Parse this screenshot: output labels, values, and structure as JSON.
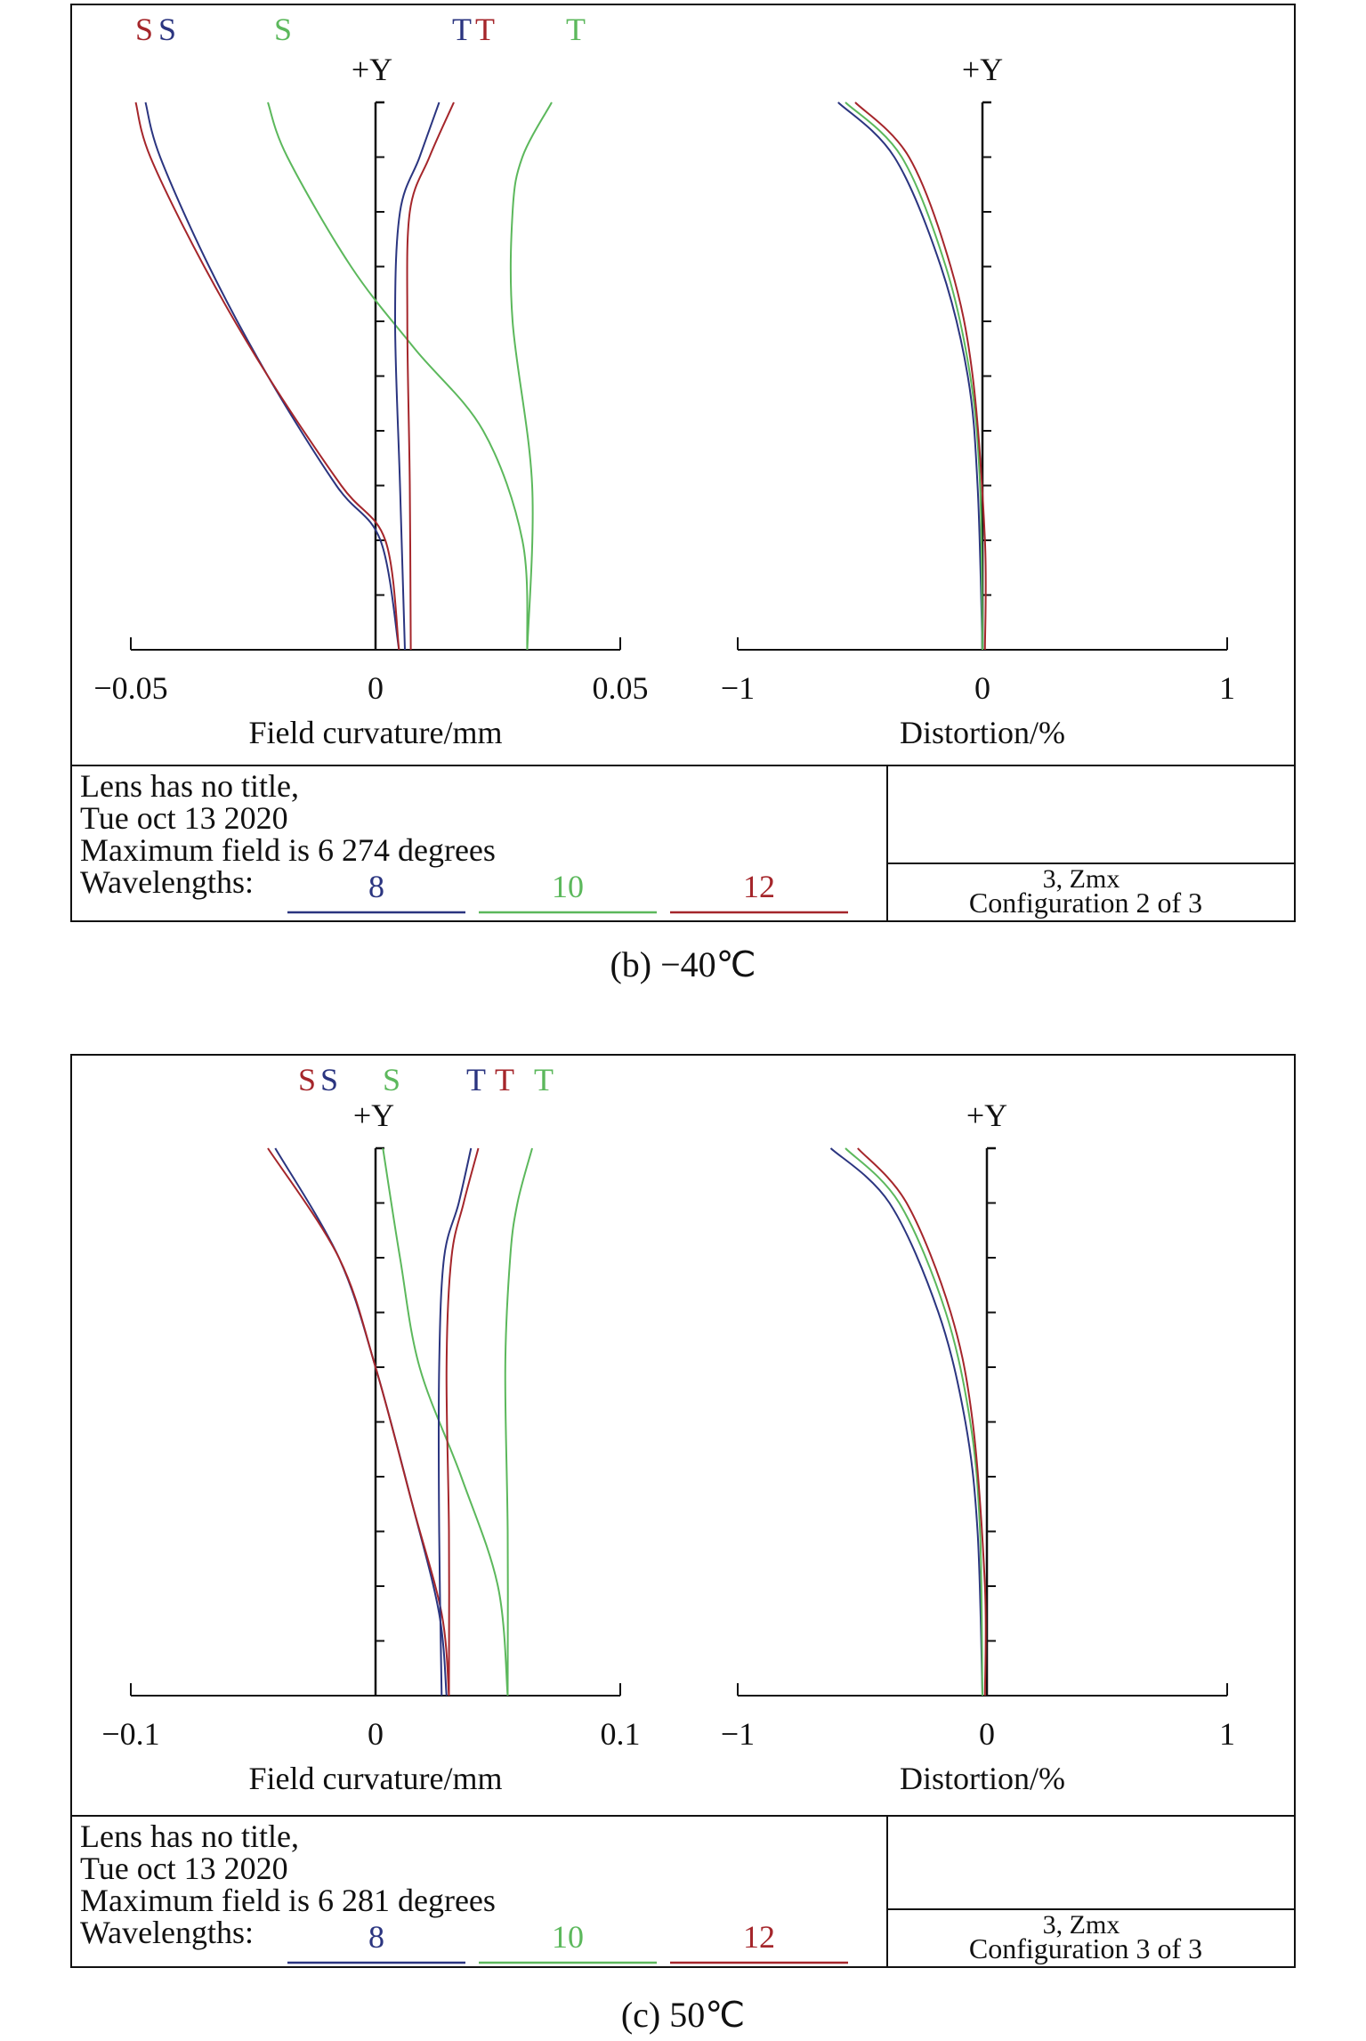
{
  "colors": {
    "blue": "#2b3580",
    "green": "#5cb85c",
    "red": "#a5262b",
    "frame": "#111111"
  },
  "panels": [
    {
      "caption": "(b) −40℃",
      "field_label": "Field curvature/mm",
      "distortion_label": "Distortion/%",
      "plus_y": "+Y",
      "field_ticks": [
        "−0.05",
        "0",
        "0.05"
      ],
      "dist_ticks": [
        "−1",
        "0",
        "1"
      ],
      "legend_top": [
        {
          "text": "S",
          "color": "red"
        },
        {
          "text": "S",
          "color": "blue"
        },
        {
          "text": "S",
          "color": "green"
        },
        {
          "text": "T",
          "color": "blue"
        },
        {
          "text": "T",
          "color": "red"
        },
        {
          "text": "T",
          "color": "green"
        }
      ],
      "info_lines": [
        "Lens has no title,",
        "Tue oct 13 2020",
        "Maximum field is 6 274 degrees"
      ],
      "wavelengths_label": "Wavelengths:",
      "wavelengths": [
        "8",
        "10",
        "12"
      ],
      "config_lines": [
        "3, Zmx",
        "Configuration 2 of 3"
      ]
    },
    {
      "caption": "(c) 50℃",
      "field_label": "Field curvature/mm",
      "distortion_label": "Distortion/%",
      "plus_y": "+Y",
      "field_ticks": [
        "−0.1",
        "0",
        "0.1"
      ],
      "dist_ticks": [
        "−1",
        "0",
        "1"
      ],
      "legend_top": [
        {
          "text": "S",
          "color": "red"
        },
        {
          "text": "S",
          "color": "blue"
        },
        {
          "text": "S",
          "color": "green"
        },
        {
          "text": "T",
          "color": "blue"
        },
        {
          "text": "T",
          "color": "red"
        },
        {
          "text": "T",
          "color": "green"
        }
      ],
      "info_lines": [
        "Lens has no title,",
        "Tue oct 13 2020",
        "Maximum field is 6 281 degrees"
      ],
      "wavelengths_label": "Wavelengths:",
      "wavelengths": [
        "8",
        "10",
        "12"
      ],
      "config_lines": [
        "3,  Zmx",
        "Configuration 3 of 3"
      ]
    }
  ],
  "chart_data": [
    {
      "type": "line",
      "xlabel": "Field curvature/mm",
      "ylabel": "+Y",
      "xlim": [
        -0.05,
        0.05
      ],
      "ylim": [
        0,
        1
      ],
      "series": [
        {
          "name": "S",
          "color": "blue",
          "points": [
            [
              0.0048,
              0
            ],
            [
              0.001,
              0.2
            ],
            [
              -0.008,
              0.3
            ],
            [
              -0.022,
              0.5
            ],
            [
              -0.034,
              0.7
            ],
            [
              -0.044,
              0.9
            ],
            [
              -0.047,
              1
            ]
          ]
        },
        {
          "name": "S",
          "color": "red",
          "points": [
            [
              0.0048,
              0
            ],
            [
              0.002,
              0.2
            ],
            [
              -0.007,
              0.3
            ],
            [
              -0.022,
              0.5
            ],
            [
              -0.035,
              0.7
            ],
            [
              -0.046,
              0.9
            ],
            [
              -0.049,
              1
            ]
          ]
        },
        {
          "name": "S",
          "color": "green",
          "points": [
            [
              0.031,
              0
            ],
            [
              0.03,
              0.2
            ],
            [
              0.022,
              0.4
            ],
            [
              0.008,
              0.55
            ],
            [
              -0.005,
              0.7
            ],
            [
              -0.018,
              0.9
            ],
            [
              -0.022,
              1
            ]
          ]
        },
        {
          "name": "T",
          "color": "blue",
          "points": [
            [
              0.006,
              0
            ],
            [
              0.005,
              0.3
            ],
            [
              0.004,
              0.6
            ],
            [
              0.005,
              0.8
            ],
            [
              0.009,
              0.9
            ],
            [
              0.013,
              1
            ]
          ]
        },
        {
          "name": "T",
          "color": "red",
          "points": [
            [
              0.0072,
              0
            ],
            [
              0.007,
              0.3
            ],
            [
              0.0065,
              0.6
            ],
            [
              0.007,
              0.8
            ],
            [
              0.011,
              0.9
            ],
            [
              0.016,
              1
            ]
          ]
        },
        {
          "name": "T",
          "color": "green",
          "points": [
            [
              0.031,
              0
            ],
            [
              0.032,
              0.3
            ],
            [
              0.028,
              0.6
            ],
            [
              0.028,
              0.8
            ],
            [
              0.03,
              0.9
            ],
            [
              0.036,
              1
            ]
          ]
        }
      ]
    },
    {
      "type": "line",
      "xlabel": "Distortion/%",
      "ylabel": "+Y",
      "xlim": [
        -1,
        1
      ],
      "ylim": [
        0,
        1
      ],
      "series": [
        {
          "name": "8",
          "color": "blue",
          "points": [
            [
              0,
              0
            ],
            [
              -0.02,
              0.3
            ],
            [
              -0.06,
              0.5
            ],
            [
              -0.17,
              0.7
            ],
            [
              -0.36,
              0.9
            ],
            [
              -0.59,
              1
            ]
          ]
        },
        {
          "name": "10",
          "color": "green",
          "points": [
            [
              0,
              0
            ],
            [
              -0.01,
              0.3
            ],
            [
              -0.05,
              0.5
            ],
            [
              -0.15,
              0.7
            ],
            [
              -0.33,
              0.9
            ],
            [
              -0.56,
              1
            ]
          ]
        },
        {
          "name": "12",
          "color": "red",
          "points": [
            [
              0.01,
              0
            ],
            [
              0.01,
              0.2
            ],
            [
              -0.04,
              0.5
            ],
            [
              -0.13,
              0.7
            ],
            [
              -0.3,
              0.9
            ],
            [
              -0.52,
              1
            ]
          ]
        }
      ]
    },
    {
      "type": "line",
      "xlabel": "Field curvature/mm",
      "ylabel": "+Y",
      "xlim": [
        -0.1,
        0.1
      ],
      "ylim": [
        0,
        1
      ],
      "series": [
        {
          "name": "S",
          "color": "blue",
          "points": [
            [
              0.029,
              0
            ],
            [
              0.026,
              0.15
            ],
            [
              0.015,
              0.35
            ],
            [
              0.0,
              0.6
            ],
            [
              -0.015,
              0.8
            ],
            [
              -0.041,
              1
            ]
          ]
        },
        {
          "name": "S",
          "color": "red",
          "points": [
            [
              0.03,
              0
            ],
            [
              0.027,
              0.15
            ],
            [
              0.015,
              0.35
            ],
            [
              0.0,
              0.6
            ],
            [
              -0.015,
              0.8
            ],
            [
              -0.044,
              1
            ]
          ]
        },
        {
          "name": "S",
          "color": "green",
          "points": [
            [
              0.054,
              0
            ],
            [
              0.05,
              0.2
            ],
            [
              0.035,
              0.4
            ],
            [
              0.018,
              0.6
            ],
            [
              0.01,
              0.8
            ],
            [
              0.003,
              1
            ]
          ]
        },
        {
          "name": "T",
          "color": "blue",
          "points": [
            [
              0.027,
              0
            ],
            [
              0.026,
              0.3
            ],
            [
              0.026,
              0.6
            ],
            [
              0.028,
              0.8
            ],
            [
              0.034,
              0.9
            ],
            [
              0.039,
              1
            ]
          ]
        },
        {
          "name": "T",
          "color": "red",
          "points": [
            [
              0.03,
              0
            ],
            [
              0.03,
              0.3
            ],
            [
              0.029,
              0.6
            ],
            [
              0.031,
              0.8
            ],
            [
              0.036,
              0.9
            ],
            [
              0.042,
              1
            ]
          ]
        },
        {
          "name": "T",
          "color": "green",
          "points": [
            [
              0.054,
              0
            ],
            [
              0.054,
              0.3
            ],
            [
              0.053,
              0.6
            ],
            [
              0.055,
              0.8
            ],
            [
              0.058,
              0.9
            ],
            [
              0.064,
              1
            ]
          ]
        }
      ]
    },
    {
      "type": "line",
      "xlabel": "Distortion/%",
      "ylabel": "+Y",
      "xlim": [
        -1,
        1
      ],
      "ylim": [
        0,
        1
      ],
      "series": [
        {
          "name": "8",
          "color": "blue",
          "points": [
            [
              0,
              0
            ],
            [
              -0.02,
              0.3
            ],
            [
              -0.07,
              0.5
            ],
            [
              -0.18,
              0.7
            ],
            [
              -0.38,
              0.9
            ],
            [
              -0.62,
              1
            ]
          ]
        },
        {
          "name": "10",
          "color": "green",
          "points": [
            [
              0,
              0
            ],
            [
              -0.01,
              0.3
            ],
            [
              -0.05,
              0.5
            ],
            [
              -0.15,
              0.7
            ],
            [
              -0.34,
              0.9
            ],
            [
              -0.56,
              1
            ]
          ]
        },
        {
          "name": "12",
          "color": "red",
          "points": [
            [
              0.01,
              0
            ],
            [
              0.01,
              0.2
            ],
            [
              -0.04,
              0.5
            ],
            [
              -0.13,
              0.7
            ],
            [
              -0.31,
              0.9
            ],
            [
              -0.51,
              1
            ]
          ]
        }
      ]
    }
  ]
}
